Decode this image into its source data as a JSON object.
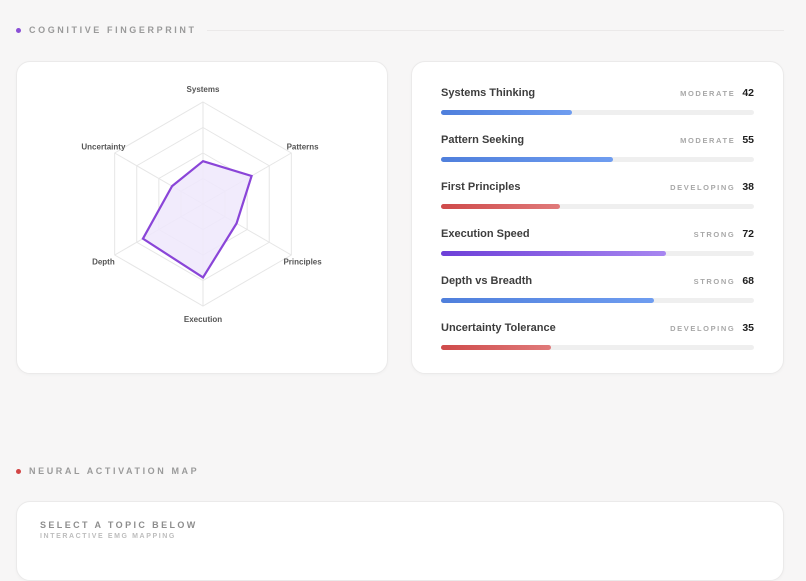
{
  "sections": {
    "fingerprint": {
      "title": "COGNITIVE FINGERPRINT",
      "dot_color": "#8a4fd6"
    },
    "neural": {
      "title": "NEURAL ACTIVATION MAP",
      "dot_color": "#d24545"
    }
  },
  "radar": {
    "axes": [
      "Systems",
      "Patterns",
      "Principles",
      "Execution",
      "Depth",
      "Uncertainty"
    ],
    "values": [
      42,
      55,
      38,
      72,
      68,
      35
    ],
    "max": 100,
    "levels": 4,
    "stroke_color": "#8a45d8",
    "fill_color": "#efe8fb"
  },
  "metrics": [
    {
      "name": "Systems Thinking",
      "level": "MODERATE",
      "value": 42,
      "fill": "blue"
    },
    {
      "name": "Pattern Seeking",
      "level": "MODERATE",
      "value": 55,
      "fill": "blue"
    },
    {
      "name": "First Principles",
      "level": "DEVELOPING",
      "value": 38,
      "fill": "red"
    },
    {
      "name": "Execution Speed",
      "level": "STRONG",
      "value": 72,
      "fill": "purple"
    },
    {
      "name": "Depth vs Breadth",
      "level": "STRONG",
      "value": 68,
      "fill": "blue"
    },
    {
      "name": "Uncertainty Tolerance",
      "level": "DEVELOPING",
      "value": 35,
      "fill": "red"
    }
  ],
  "neural": {
    "prompt": "SELECT A TOPIC BELOW",
    "subtitle": "INTERACTIVE EMG MAPPING"
  }
}
